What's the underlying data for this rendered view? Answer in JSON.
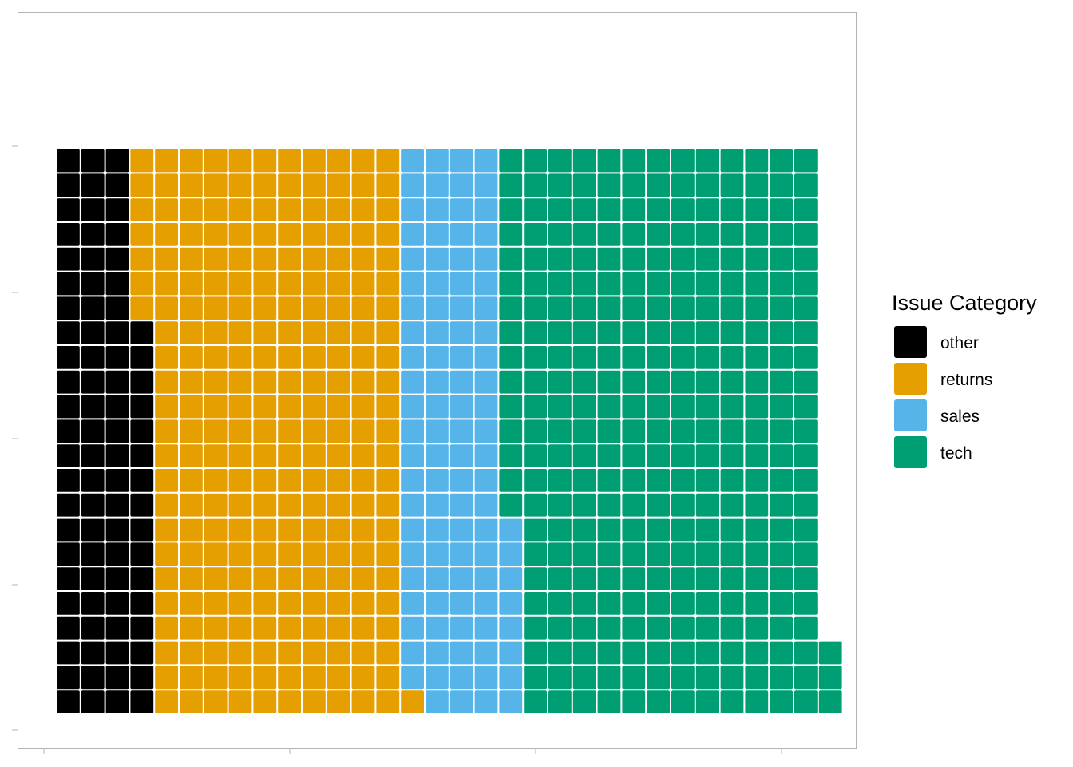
{
  "chart_data": {
    "type": "waffle",
    "title": "",
    "xlabel": "",
    "ylabel": "",
    "rows": 23,
    "columns": 31,
    "fill_order": "column-major, bottom to top, left to right",
    "legend": {
      "title": "Issue Category",
      "position": "right"
    },
    "categories": [
      "other",
      "returns",
      "sales",
      "tech"
    ],
    "values": [
      85,
      238,
      99,
      294
    ],
    "total": 716,
    "colors": {
      "other": "#000000",
      "returns": "#E69F00",
      "sales": "#56B4E9",
      "tech": "#009E73"
    },
    "grid": false
  }
}
